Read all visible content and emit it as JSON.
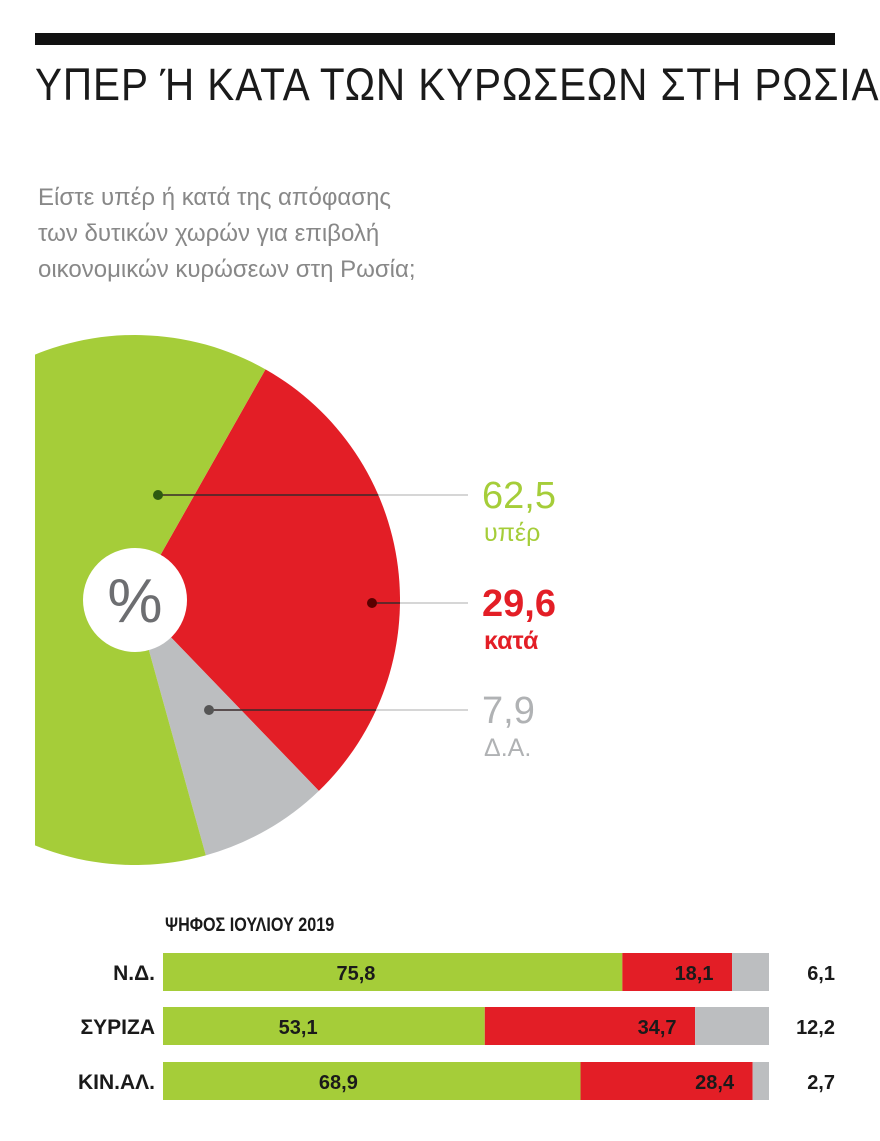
{
  "title": "ΥΠΕΡ Ή ΚΑΤΑ ΤΩΝ ΚΥΡΩΣΕΩΝ ΣΤΗ ΡΩΣΙΑ",
  "subtitle": "Είστε υπέρ ή κατά της απόφασης\nτων δυτικών χωρών για επιβολή\nοικονομικών κυρώσεων στη Ρωσία;",
  "chart_data": [
    {
      "type": "pie",
      "center_label": "%",
      "slices": [
        {
          "label": "υπέρ",
          "value": 62.5,
          "display": "62,5",
          "color": "#a5cd39"
        },
        {
          "label": "κατά",
          "value": 29.6,
          "display": "29,6",
          "color": "#e31e26"
        },
        {
          "label": "Δ.Α.",
          "value": 7.9,
          "display": "7,9",
          "color": "#bcbec0"
        }
      ]
    },
    {
      "type": "bar",
      "stacked": true,
      "orientation": "horizontal",
      "title": "ΨΗΦΟΣ ΙΟΥΛΙΟΥ 2019",
      "categories": [
        "Ν.Δ.",
        "ΣΥΡΙΖΑ",
        "ΚΙΝ.ΑΛ."
      ],
      "series": [
        {
          "values": [
            75.8,
            53.1,
            68.9
          ],
          "display": [
            "75,8",
            "53,1",
            "68,9"
          ],
          "color": "#a5cd39"
        },
        {
          "values": [
            18.1,
            34.7,
            28.4
          ],
          "display": [
            "18,1",
            "34,7",
            "28,4"
          ],
          "color": "#e31e26"
        },
        {
          "values": [
            6.1,
            12.2,
            2.7
          ],
          "display": [
            "6,1",
            "12,2",
            "2,7"
          ],
          "color": "#bcbec0"
        }
      ],
      "xlim": [
        0,
        100
      ]
    }
  ]
}
